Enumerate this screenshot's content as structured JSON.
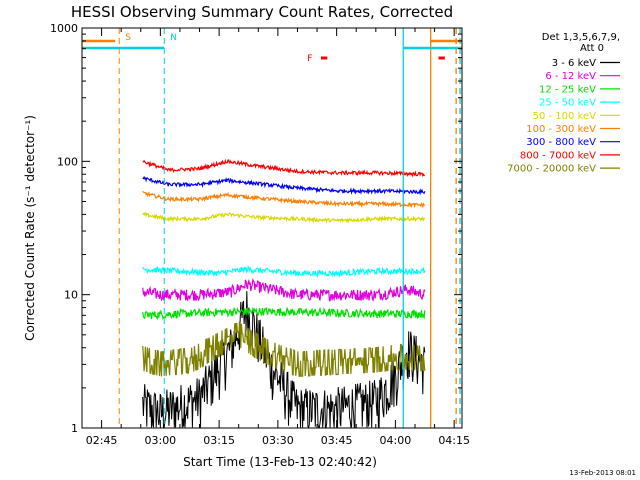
{
  "chart_data": {
    "type": "line",
    "title": "HESSI Observing Summary Count Rates, Corrected",
    "xlabel": "Start Time (13-Feb-13 02:40:42)",
    "ylabel": "Corrected Count Rate (s⁻¹ detector⁻¹)",
    "yscale": "log",
    "ylim": [
      1,
      1000
    ],
    "y_ticks": [
      {
        "value": 1,
        "label": "1"
      },
      {
        "value": 10,
        "label": "10"
      },
      {
        "value": 100,
        "label": "100"
      },
      {
        "value": 1000,
        "label": "1000"
      }
    ],
    "xlim_minutes": [
      0,
      97
    ],
    "x_ticks": [
      {
        "minute": 5,
        "label": "02:45"
      },
      {
        "minute": 20,
        "label": "03:00"
      },
      {
        "minute": 35,
        "label": "03:15"
      },
      {
        "minute": 50,
        "label": "03:30"
      },
      {
        "minute": 65,
        "label": "03:45"
      },
      {
        "minute": 80,
        "label": "04:00"
      },
      {
        "minute": 95,
        "label": "04:15"
      }
    ],
    "legend_header": [
      "Det 1,3,5,6,7,9,",
      "Att 0"
    ],
    "legend_position": "right",
    "data_start_minute": 15.5,
    "data_end_minute": 87.5,
    "series": [
      {
        "name": "3 - 6 keV",
        "color": "#000000",
        "minutes": [
          15.5,
          20,
          30,
          38,
          42,
          48,
          55,
          65,
          75,
          80,
          83,
          87.5
        ],
        "values": [
          1.5,
          1.3,
          1.7,
          4,
          8,
          3,
          1.4,
          1.4,
          1.6,
          2.5,
          4,
          3
        ]
      },
      {
        "name": "6 - 12 keV",
        "color": "#e000e0",
        "minutes": [
          15.5,
          20,
          30,
          38,
          42,
          48,
          55,
          65,
          75,
          80,
          83,
          87.5
        ],
        "values": [
          10.5,
          10,
          10,
          10.5,
          12,
          11,
          10,
          10,
          10,
          10.5,
          11,
          10
        ]
      },
      {
        "name": "12 - 25 keV",
        "color": "#00e000",
        "minutes": [
          15.5,
          25,
          35,
          45,
          55,
          65,
          75,
          87.5
        ],
        "values": [
          7,
          7.2,
          7.4,
          7.5,
          7.4,
          7.3,
          7.2,
          7.2
        ]
      },
      {
        "name": "25 - 50 keV",
        "color": "#00ffff",
        "minutes": [
          15.5,
          25,
          35,
          42,
          48,
          55,
          65,
          75,
          87.5
        ],
        "values": [
          15.5,
          15,
          14.5,
          15.5,
          15,
          14.5,
          14.5,
          15,
          15
        ]
      },
      {
        "name": "50 - 100 keV",
        "color": "#d8d800",
        "minutes": [
          15.5,
          22,
          30,
          37,
          45,
          55,
          65,
          75,
          87.5
        ],
        "values": [
          40,
          37,
          37,
          40,
          38,
          37,
          36,
          37,
          37
        ]
      },
      {
        "name": "100 - 300 keV",
        "color": "#ff8000",
        "minutes": [
          15.5,
          22,
          30,
          37,
          45,
          55,
          65,
          75,
          87.5
        ],
        "values": [
          58,
          52,
          52,
          56,
          53,
          50,
          48,
          48,
          47
        ]
      },
      {
        "name": "300 - 800 keV",
        "color": "#0000ff",
        "minutes": [
          15.5,
          22,
          30,
          37,
          45,
          55,
          65,
          75,
          87.5
        ],
        "values": [
          75,
          67,
          67,
          72,
          68,
          63,
          60,
          60,
          59
        ]
      },
      {
        "name": "800 - 7000 keV",
        "color": "#ff0000",
        "minutes": [
          15.5,
          22,
          30,
          37,
          45,
          55,
          65,
          75,
          87.5
        ],
        "values": [
          100,
          86,
          88,
          100,
          92,
          84,
          82,
          82,
          80
        ]
      },
      {
        "name": "7000 - 20000 keV",
        "color": "#808000",
        "minutes": [
          15.5,
          20,
          28,
          35,
          40,
          45,
          50,
          55,
          65,
          75,
          80,
          87.5
        ],
        "values": [
          3.3,
          3.0,
          3.2,
          4.2,
          5,
          4,
          3.4,
          3,
          3.1,
          3.2,
          3.4,
          3.3
        ]
      }
    ],
    "markers": [
      {
        "label": "S",
        "color": "#ff8000",
        "line_style": "dashed",
        "minute": 9.5
      },
      {
        "label": "N",
        "color": "#00d0e0",
        "line_style": "dashed",
        "minute": 21
      }
    ],
    "flare_label": "F",
    "flare_marks_minutes": [
      [
        61,
        61.6
      ],
      [
        91,
        91.6
      ]
    ],
    "intervals": [
      {
        "color": "#ff8000",
        "line_style": "solid",
        "minute": 89
      },
      {
        "color": "#00d0e0",
        "line_style": "solid",
        "minute": 82
      },
      {
        "color": "#ff8000",
        "line_style": "dashed",
        "minute": 95.5
      },
      {
        "color": "#00d0e0",
        "line_style": "dashed",
        "minute": 96.5
      }
    ],
    "grid": false
  },
  "footer": {
    "timestamp": "13-Feb-2013 08:01"
  }
}
